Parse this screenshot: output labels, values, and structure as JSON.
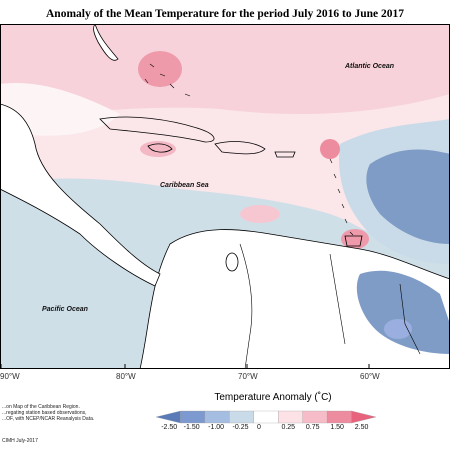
{
  "title": "Anomaly of the Mean Temperature for the period July 2016 to June 2017",
  "map_labels": {
    "atlantic": "Atlantic Ocean",
    "caribbean": "Caribbean Sea",
    "pacific": "Pacific Ocean"
  },
  "longitudes": [
    "90°W",
    "80°W",
    "70°W",
    "60°W"
  ],
  "legend": {
    "title": "Temperature Anomaly (˚C)",
    "ticks": [
      "-2.50",
      "-1.50",
      "-1.00",
      "-0.25",
      "0",
      "0.25",
      "0.75",
      "1.50",
      "2.50"
    ],
    "colors": [
      "#5a7ab8",
      "#7d9ad0",
      "#a5bde0",
      "#c9dbe8",
      "#ffffff",
      "#fce1e6",
      "#f6bcc8",
      "#ee8c9f",
      "#e8637d"
    ]
  },
  "footnote": [
    "...on Map of the Caribbean Region.",
    "...regating station based observations,",
    "...OF, with NCEP/NCAR Reanalysis Data."
  ],
  "credit": "CIMH July-2017"
}
